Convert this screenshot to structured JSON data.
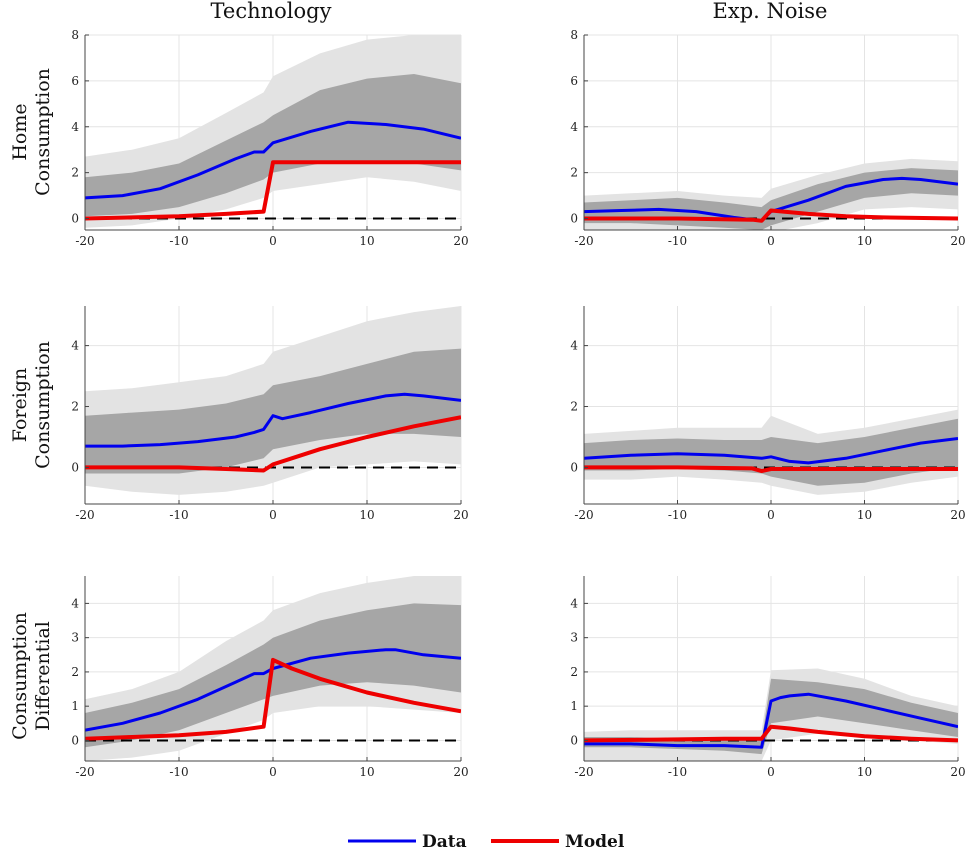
{
  "colors": {
    "data": "#0000ee",
    "model": "#ee0000",
    "band_outer": "#e3e3e3",
    "band_inner": "#a6a6a6",
    "zero_line": "#000000",
    "grid": "#e4e4e4"
  },
  "legend": {
    "placement": "bottom-center",
    "items": [
      "Data",
      "Model"
    ]
  },
  "columns": [
    "Technology",
    "Exp. Noise"
  ],
  "rows": [
    [
      "Home",
      "Consumption"
    ],
    [
      "Foreign",
      "Consumption"
    ],
    [
      "Consumption",
      "Differential"
    ]
  ],
  "chart_data": [
    {
      "type": "line",
      "column": "Technology",
      "row": "Home Consumption",
      "xlim": [
        -20,
        20
      ],
      "ylim": [
        -0.5,
        8
      ],
      "xticks": [
        -20,
        -10,
        0,
        10,
        20
      ],
      "yticks": [
        0,
        2,
        4,
        6,
        8
      ],
      "grid": true,
      "series": [
        {
          "name": "Data",
          "x": [
            -20,
            -16,
            -12,
            -8,
            -4,
            -2,
            -1,
            0,
            4,
            8,
            12,
            16,
            20
          ],
          "y": [
            0.9,
            1.0,
            1.3,
            1.9,
            2.6,
            2.9,
            2.9,
            3.3,
            3.8,
            4.2,
            4.1,
            3.9,
            3.5
          ]
        },
        {
          "name": "Model",
          "x": [
            -20,
            -15,
            -10,
            -5,
            -1,
            0,
            5,
            10,
            15,
            20
          ],
          "y": [
            0,
            0.05,
            0.1,
            0.2,
            0.3,
            2.45,
            2.45,
            2.45,
            2.45,
            2.45
          ]
        }
      ],
      "band_inner": {
        "x": [
          -20,
          -15,
          -10,
          -5,
          -1,
          0,
          5,
          10,
          15,
          20
        ],
        "lower": [
          0.1,
          0.2,
          0.5,
          1.1,
          1.7,
          2.0,
          2.4,
          2.5,
          2.4,
          2.1
        ],
        "upper": [
          1.8,
          2.0,
          2.4,
          3.4,
          4.2,
          4.5,
          5.6,
          6.1,
          6.3,
          5.9
        ]
      },
      "band_outer": {
        "x": [
          -20,
          -15,
          -10,
          -5,
          -1,
          0,
          5,
          10,
          15,
          20
        ],
        "lower": [
          -0.4,
          -0.3,
          0,
          0.4,
          0.9,
          1.2,
          1.5,
          1.8,
          1.6,
          1.2
        ],
        "upper": [
          2.7,
          3.0,
          3.5,
          4.6,
          5.5,
          6.2,
          7.2,
          7.8,
          8.0,
          8.0
        ]
      }
    },
    {
      "type": "line",
      "column": "Exp. Noise",
      "row": "Home Consumption",
      "xlim": [
        -20,
        20
      ],
      "ylim": [
        -0.5,
        8
      ],
      "xticks": [
        -20,
        -10,
        0,
        10,
        20
      ],
      "yticks": [
        0,
        2,
        4,
        6,
        8
      ],
      "grid": true,
      "series": [
        {
          "name": "Data",
          "x": [
            -20,
            -16,
            -12,
            -8,
            -4,
            -2,
            -1,
            0,
            4,
            8,
            12,
            14,
            16,
            20
          ],
          "y": [
            0.3,
            0.35,
            0.4,
            0.3,
            0.05,
            -0.05,
            -0.1,
            0.3,
            0.8,
            1.4,
            1.7,
            1.75,
            1.7,
            1.5
          ]
        },
        {
          "name": "Model",
          "x": [
            -20,
            -10,
            -2,
            -1,
            0,
            4,
            8,
            12,
            20
          ],
          "y": [
            0,
            0,
            -0.05,
            -0.1,
            0.35,
            0.2,
            0.1,
            0.05,
            0
          ]
        }
      ],
      "band_inner": {
        "x": [
          -20,
          -15,
          -10,
          -5,
          -1,
          0,
          5,
          10,
          15,
          20
        ],
        "lower": [
          -0.2,
          -0.2,
          -0.3,
          -0.4,
          -0.5,
          -0.3,
          0.3,
          0.9,
          1.1,
          1.0
        ],
        "upper": [
          0.7,
          0.8,
          0.9,
          0.7,
          0.5,
          0.8,
          1.5,
          2.0,
          2.2,
          2.1
        ]
      },
      "band_outer": {
        "x": [
          -20,
          -15,
          -10,
          -5,
          -1,
          0,
          5,
          10,
          15,
          20
        ],
        "lower": [
          -0.5,
          -0.5,
          -0.5,
          -0.6,
          -0.7,
          -0.6,
          -0.2,
          0.4,
          0.5,
          0.4
        ],
        "upper": [
          1.0,
          1.1,
          1.2,
          1.0,
          0.9,
          1.3,
          1.9,
          2.4,
          2.6,
          2.5
        ]
      }
    },
    {
      "type": "line",
      "column": "Technology",
      "row": "Foreign Consumption",
      "xlim": [
        -20,
        20
      ],
      "ylim": [
        -1.2,
        5.3
      ],
      "xticks": [
        -20,
        -10,
        0,
        10,
        20
      ],
      "yticks": [
        0,
        2,
        4
      ],
      "grid": true,
      "series": [
        {
          "name": "Data",
          "x": [
            -20,
            -16,
            -12,
            -8,
            -4,
            -2,
            -1,
            0,
            1,
            4,
            8,
            12,
            14,
            16,
            20
          ],
          "y": [
            0.7,
            0.7,
            0.75,
            0.85,
            1.0,
            1.15,
            1.25,
            1.7,
            1.6,
            1.8,
            2.1,
            2.35,
            2.4,
            2.35,
            2.2
          ]
        },
        {
          "name": "Model",
          "x": [
            -20,
            -10,
            -5,
            -1,
            0,
            2,
            5,
            10,
            15,
            20
          ],
          "y": [
            0,
            0,
            -0.05,
            -0.1,
            0.1,
            0.3,
            0.6,
            1.0,
            1.35,
            1.65
          ]
        }
      ],
      "band_inner": {
        "x": [
          -20,
          -15,
          -10,
          -5,
          -1,
          0,
          5,
          10,
          15,
          20
        ],
        "lower": [
          -0.2,
          -0.2,
          -0.2,
          0,
          0.3,
          0.6,
          0.9,
          1.1,
          1.1,
          1.0
        ],
        "upper": [
          1.7,
          1.8,
          1.9,
          2.1,
          2.4,
          2.7,
          3.0,
          3.4,
          3.8,
          3.9
        ]
      },
      "band_outer": {
        "x": [
          -20,
          -15,
          -10,
          -5,
          -1,
          0,
          5,
          10,
          15,
          20
        ],
        "lower": [
          -0.6,
          -0.8,
          -0.9,
          -0.8,
          -0.6,
          -0.5,
          0,
          0.1,
          0.2,
          0.1
        ],
        "upper": [
          2.5,
          2.6,
          2.8,
          3.0,
          3.4,
          3.8,
          4.3,
          4.8,
          5.1,
          5.3
        ]
      }
    },
    {
      "type": "line",
      "column": "Exp. Noise",
      "row": "Foreign Consumption",
      "xlim": [
        -20,
        20
      ],
      "ylim": [
        -1.2,
        5.3
      ],
      "xticks": [
        -20,
        -10,
        0,
        10,
        20
      ],
      "yticks": [
        0,
        2,
        4
      ],
      "grid": true,
      "series": [
        {
          "name": "Data",
          "x": [
            -20,
            -15,
            -10,
            -5,
            -1,
            0,
            2,
            4,
            8,
            12,
            16,
            20
          ],
          "y": [
            0.3,
            0.4,
            0.45,
            0.4,
            0.3,
            0.35,
            0.2,
            0.15,
            0.3,
            0.55,
            0.8,
            0.95
          ]
        },
        {
          "name": "Model",
          "x": [
            -20,
            -10,
            -2,
            -1,
            0,
            5,
            10,
            20
          ],
          "y": [
            0,
            0,
            -0.03,
            -0.12,
            -0.05,
            -0.05,
            -0.05,
            -0.05
          ]
        }
      ],
      "band_inner": {
        "x": [
          -20,
          -15,
          -10,
          -5,
          -1,
          0,
          5,
          10,
          15,
          20
        ],
        "lower": [
          -0.1,
          -0.1,
          -0.05,
          -0.1,
          -0.2,
          -0.3,
          -0.6,
          -0.5,
          -0.2,
          0
        ],
        "upper": [
          0.8,
          0.9,
          0.95,
          0.9,
          0.9,
          1.0,
          0.8,
          1.0,
          1.3,
          1.6
        ]
      },
      "band_outer": {
        "x": [
          -20,
          -15,
          -10,
          -5,
          -1,
          0,
          5,
          10,
          15,
          20
        ],
        "lower": [
          -0.4,
          -0.4,
          -0.3,
          -0.4,
          -0.5,
          -0.6,
          -0.9,
          -0.8,
          -0.5,
          -0.3
        ],
        "upper": [
          1.1,
          1.2,
          1.3,
          1.3,
          1.3,
          1.7,
          1.1,
          1.3,
          1.6,
          1.9
        ]
      }
    },
    {
      "type": "line",
      "column": "Technology",
      "row": "Consumption Differential",
      "xlim": [
        -20,
        20
      ],
      "ylim": [
        -0.6,
        4.8
      ],
      "xticks": [
        -20,
        -10,
        0,
        10,
        20
      ],
      "yticks": [
        0,
        1,
        2,
        3,
        4
      ],
      "grid": true,
      "series": [
        {
          "name": "Data",
          "x": [
            -20,
            -16,
            -12,
            -8,
            -4,
            -2,
            -1,
            0,
            4,
            8,
            12,
            13,
            16,
            20
          ],
          "y": [
            0.3,
            0.5,
            0.8,
            1.2,
            1.7,
            1.95,
            1.95,
            2.1,
            2.4,
            2.55,
            2.65,
            2.65,
            2.5,
            2.4
          ]
        },
        {
          "name": "Model",
          "x": [
            -20,
            -15,
            -10,
            -5,
            -1,
            0,
            2,
            5,
            10,
            15,
            20
          ],
          "y": [
            0.05,
            0.1,
            0.15,
            0.25,
            0.4,
            2.35,
            2.1,
            1.8,
            1.4,
            1.1,
            0.85
          ]
        }
      ],
      "band_inner": {
        "x": [
          -20,
          -15,
          -10,
          -5,
          -1,
          0,
          5,
          10,
          15,
          20
        ],
        "lower": [
          -0.2,
          0,
          0.3,
          0.8,
          1.2,
          1.3,
          1.6,
          1.7,
          1.6,
          1.4
        ],
        "upper": [
          0.8,
          1.1,
          1.5,
          2.2,
          2.8,
          3.0,
          3.5,
          3.8,
          4.0,
          3.95
        ]
      },
      "band_outer": {
        "x": [
          -20,
          -15,
          -10,
          -5,
          -1,
          0,
          5,
          10,
          15,
          20
        ],
        "lower": [
          -0.6,
          -0.5,
          -0.3,
          0.2,
          0.6,
          0.8,
          1.0,
          1.0,
          0.9,
          0.8
        ],
        "upper": [
          1.2,
          1.5,
          2.0,
          2.9,
          3.5,
          3.8,
          4.3,
          4.6,
          4.8,
          4.8
        ]
      }
    },
    {
      "type": "line",
      "column": "Exp. Noise",
      "row": "Consumption Differential",
      "xlim": [
        -20,
        20
      ],
      "ylim": [
        -0.6,
        4.8
      ],
      "xticks": [
        -20,
        -10,
        0,
        10,
        20
      ],
      "yticks": [
        0,
        1,
        2,
        3,
        4
      ],
      "grid": true,
      "series": [
        {
          "name": "Data",
          "x": [
            -20,
            -15,
            -10,
            -5,
            -1,
            0,
            1,
            2,
            4,
            8,
            12,
            16,
            20
          ],
          "y": [
            -0.1,
            -0.1,
            -0.15,
            -0.15,
            -0.2,
            1.15,
            1.25,
            1.3,
            1.35,
            1.15,
            0.9,
            0.65,
            0.4
          ]
        },
        {
          "name": "Model",
          "x": [
            -20,
            -10,
            -5,
            -1,
            0,
            2,
            5,
            10,
            15,
            20
          ],
          "y": [
            0,
            0.03,
            0.05,
            0.05,
            0.4,
            0.35,
            0.25,
            0.12,
            0.05,
            0
          ]
        }
      ],
      "band_inner": {
        "x": [
          -20,
          -15,
          -10,
          -5,
          -1,
          0,
          5,
          10,
          15,
          20
        ],
        "lower": [
          -0.2,
          -0.2,
          -0.25,
          -0.3,
          -0.4,
          0.5,
          0.7,
          0.5,
          0.3,
          0.1
        ],
        "upper": [
          0.1,
          0.1,
          0.05,
          0.05,
          0,
          1.8,
          1.7,
          1.5,
          1.1,
          0.8
        ]
      },
      "band_outer": {
        "x": [
          -20,
          -15,
          -10,
          -5,
          -1,
          0,
          5,
          10,
          15,
          20
        ],
        "lower": [
          -0.6,
          -0.6,
          -0.6,
          -0.6,
          -0.6,
          0,
          0.2,
          0.1,
          0,
          -0.1
        ],
        "upper": [
          0.25,
          0.3,
          0.3,
          0.3,
          0.3,
          2.05,
          2.1,
          1.8,
          1.3,
          1.0
        ]
      }
    }
  ]
}
